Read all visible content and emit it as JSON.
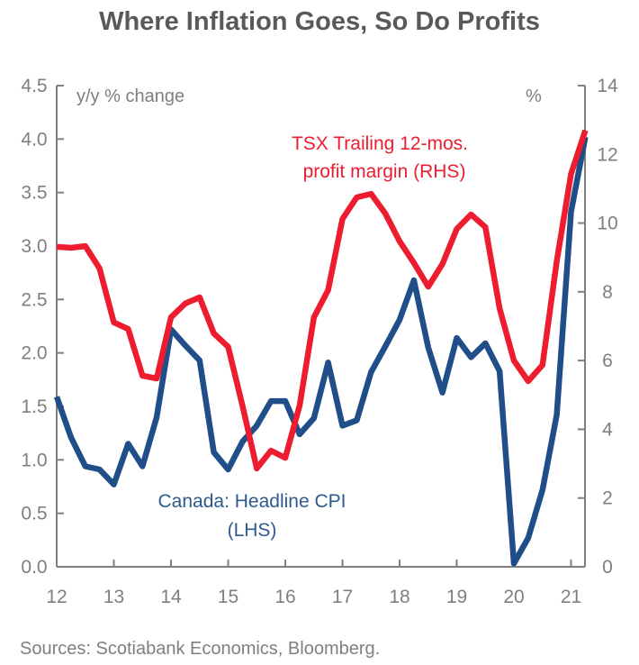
{
  "chart_data": {
    "type": "line",
    "title": "Where Inflation Goes, So Do Profits",
    "source": "Sources: Scotiabank Economics, Bloomberg.",
    "x": [
      12.0,
      12.25,
      12.5,
      12.75,
      13.0,
      13.25,
      13.5,
      13.75,
      14.0,
      14.25,
      14.5,
      14.75,
      15.0,
      15.25,
      15.5,
      15.75,
      16.0,
      16.25,
      16.5,
      16.75,
      17.0,
      17.25,
      17.5,
      17.75,
      18.0,
      18.25,
      18.5,
      18.75,
      19.0,
      19.25,
      19.5,
      19.75,
      20.0,
      20.25,
      20.5,
      20.75,
      21.0,
      21.25
    ],
    "xlim": [
      12,
      21.25
    ],
    "x_ticks": [
      "12",
      "13",
      "14",
      "15",
      "16",
      "17",
      "18",
      "19",
      "20",
      "21"
    ],
    "left_axis": {
      "label": "y/y % change",
      "ylim": [
        0,
        4.5
      ],
      "ticks": [
        "0.0",
        "0.5",
        "1.0",
        "1.5",
        "2.0",
        "2.5",
        "3.0",
        "3.5",
        "4.0",
        "4.5"
      ]
    },
    "right_axis": {
      "label": "%",
      "ylim": [
        0,
        14
      ],
      "ticks": [
        "0",
        "2",
        "4",
        "6",
        "8",
        "10",
        "12",
        "14"
      ]
    },
    "grid": false,
    "series": [
      {
        "name": "Canada: Headline CPI (LHS)",
        "label_lines": [
          "Canada: Headline CPI",
          "(LHS)"
        ],
        "axis": "left",
        "color": "#1f4e89",
        "values": [
          1.59,
          1.21,
          0.94,
          0.91,
          0.77,
          1.15,
          0.94,
          1.4,
          2.22,
          2.07,
          1.93,
          1.07,
          0.91,
          1.17,
          1.32,
          1.55,
          1.55,
          1.24,
          1.39,
          1.91,
          1.32,
          1.37,
          1.82,
          2.06,
          2.31,
          2.68,
          2.05,
          1.63,
          2.14,
          1.96,
          2.09,
          1.83,
          0.03,
          0.27,
          0.72,
          1.42,
          3.32,
          4.02
        ]
      },
      {
        "name": "TSX Trailing 12-mos. profit margin (RHS)",
        "label_lines": [
          "TSX Trailing 12-mos.",
          "profit margin (RHS)"
        ],
        "axis": "right",
        "color": "#ed1c2e",
        "values": [
          9.31,
          9.28,
          9.33,
          8.68,
          7.11,
          6.92,
          5.56,
          5.48,
          7.26,
          7.66,
          7.84,
          6.79,
          6.4,
          4.69,
          2.86,
          3.38,
          3.17,
          4.69,
          7.26,
          8.05,
          10.12,
          10.75,
          10.85,
          10.28,
          9.47,
          8.84,
          8.15,
          8.81,
          9.83,
          10.25,
          9.88,
          7.52,
          6.0,
          5.4,
          5.87,
          8.89,
          11.43,
          12.7
        ]
      }
    ]
  }
}
